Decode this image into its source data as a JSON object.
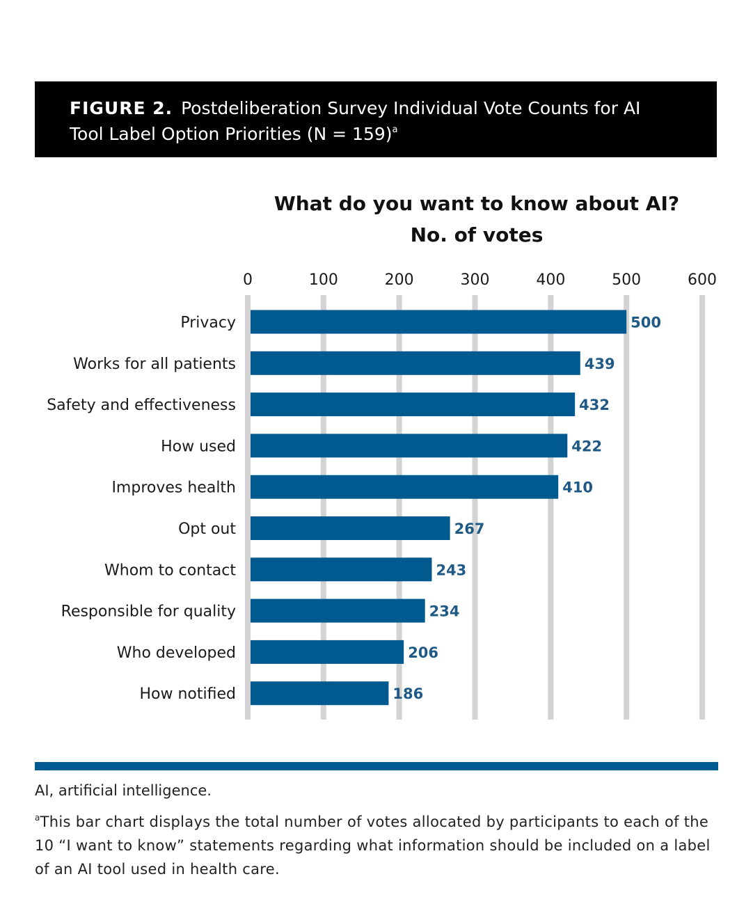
{
  "header": {
    "figure_label": "FIGURE 2.",
    "title_line1": "Postdeliberation Survey Individual Vote Counts for AI",
    "title_line2": "Tool Label Option Priorities (N = 159)",
    "footnote_marker": "a"
  },
  "chart_data": {
    "type": "bar",
    "orientation": "horizontal",
    "title": "What do you want to know about AI?",
    "subtitle": "No. of votes",
    "xlim": [
      0,
      600
    ],
    "xticks": [
      0,
      100,
      200,
      300,
      400,
      500,
      600
    ],
    "grid": true,
    "categories": [
      "Privacy",
      "Works for all patients",
      "Safety and effectiveness",
      "How used",
      "Improves health",
      "Opt out",
      "Whom to contact",
      "Responsible for quality",
      "Who developed",
      "How notified"
    ],
    "values": [
      500,
      439,
      432,
      422,
      410,
      267,
      243,
      234,
      206,
      186
    ],
    "bar_color": "#005a8f",
    "grid_color": "#d3d3d3",
    "label_color": "#1f5a86"
  },
  "footer": {
    "abbreviation": "AI, artificial intelligence.",
    "footnote_marker": "a",
    "footnote_text": "This bar chart displays the total number of votes allocated by participants to each of the 10 “I want to know” statements regarding what information should be included on a label of an AI tool used in health care.",
    "rule_color": "#005a8f"
  }
}
